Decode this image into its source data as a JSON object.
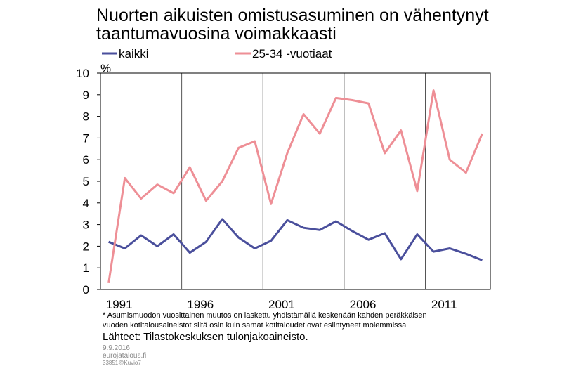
{
  "chart_data": {
    "type": "line",
    "title": [
      "Nuorten aikuisten omistusasuminen on vähentynyt",
      "taantumavuosina voimakkaasti"
    ],
    "y_unit": "%",
    "categories": [
      null,
      "1991",
      null,
      null,
      null,
      null,
      "1996",
      null,
      null,
      null,
      null,
      "2001",
      null,
      null,
      null,
      null,
      "2006",
      null,
      null,
      null,
      null,
      "2011",
      null,
      null
    ],
    "series": [
      {
        "name": "kaikki",
        "color": "#4a4f9c",
        "values": [
          2.2,
          1.9,
          2.5,
          2.0,
          2.55,
          1.7,
          2.2,
          3.25,
          2.4,
          1.9,
          2.25,
          3.2,
          2.85,
          2.75,
          3.15,
          2.7,
          2.3,
          2.6,
          1.4,
          2.55,
          1.75,
          1.9,
          1.65,
          1.35
        ]
      },
      {
        "name": "25-34 -vuotiaat",
        "color": "#ee8f96",
        "values": [
          0.3,
          5.15,
          4.2,
          4.85,
          4.45,
          5.65,
          4.1,
          5.0,
          6.55,
          6.85,
          3.95,
          6.3,
          8.1,
          7.2,
          8.85,
          8.75,
          8.6,
          6.3,
          7.35,
          4.55,
          9.2,
          6.0,
          5.4,
          7.2
        ]
      }
    ],
    "ylim": [
      0,
      10
    ],
    "yticks": [
      0,
      1,
      2,
      3,
      4,
      5,
      6,
      7,
      8,
      9,
      10
    ],
    "notes": [
      "* Asumismuodon vuosittainen muutos on laskettu yhdistämällä keskenään kahden peräkkäisen",
      "vuoden kotitalousaineistot siltä osin kuin samat kotitaloudet ovat esiintyneet molemmissa"
    ],
    "source": "Lähteet: Tilastokeskuksen tulonjakoaineisto.",
    "footer": [
      "9.9.2016",
      "eurojatalous.fi",
      "33851@Kuvio7"
    ]
  }
}
